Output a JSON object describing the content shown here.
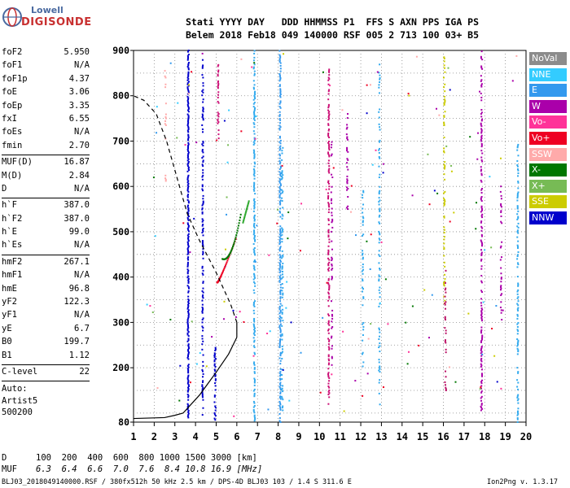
{
  "logo": {
    "line1": "Lowell",
    "line2": "DIGISONDE"
  },
  "header": {
    "line1": "Stati YYYY DAY   DDD HHMMSS P1  FFS S AXN PPS IGA PS",
    "line2": "Belem 2018 Feb18 049 140000 RSF 005 2 713 100 03+ B5"
  },
  "params": [
    {
      "k": "foF2",
      "v": "5.950"
    },
    {
      "k": "foF1",
      "v": "N/A"
    },
    {
      "k": "foF1p",
      "v": "4.37"
    },
    {
      "k": "foE",
      "v": "3.06"
    },
    {
      "k": "foEp",
      "v": "3.35"
    },
    {
      "k": "fxI",
      "v": "6.55"
    },
    {
      "k": "foEs",
      "v": "N/A"
    },
    {
      "k": "fmin",
      "v": "2.70"
    },
    {
      "k": "MUF(D)",
      "v": "16.87"
    },
    {
      "k": "M(D)",
      "v": "2.84"
    },
    {
      "k": "D",
      "v": "N/A"
    },
    {
      "k": "h`F",
      "v": "387.0"
    },
    {
      "k": "h`F2",
      "v": "387.0"
    },
    {
      "k": "h`E",
      "v": "99.0"
    },
    {
      "k": "h`Es",
      "v": "N/A"
    },
    {
      "k": "hmF2",
      "v": "267.1"
    },
    {
      "k": "hmF1",
      "v": "N/A"
    },
    {
      "k": "hmE",
      "v": "96.8"
    },
    {
      "k": "yF2",
      "v": "122.3"
    },
    {
      "k": "yF1",
      "v": "N/A"
    },
    {
      "k": "yE",
      "v": "6.7"
    },
    {
      "k": "B0",
      "v": "199.7"
    },
    {
      "k": "B1",
      "v": "1.12"
    },
    {
      "k": "C-level",
      "v": "22"
    }
  ],
  "auto": {
    "l1": "Auto:",
    "l2": "Artist5",
    "l3": "500200"
  },
  "legend": [
    {
      "label": "NoVal",
      "bg": "#8c8c8c",
      "fg": "#ffffff"
    },
    {
      "label": "NNE",
      "bg": "#33ccff",
      "fg": "#ffffff"
    },
    {
      "label": "E",
      "bg": "#3399ee",
      "fg": "#ffffff"
    },
    {
      "label": "W",
      "bg": "#aa00aa",
      "fg": "#ffffff"
    },
    {
      "label": "Vo-",
      "bg": "#ff3399",
      "fg": "#ffffff"
    },
    {
      "label": "Vo+",
      "bg": "#ee0022",
      "fg": "#ffffff"
    },
    {
      "label": "SSW",
      "bg": "#ffaaaa",
      "fg": "#ffffff"
    },
    {
      "label": "X-",
      "bg": "#007700",
      "fg": "#ffffff"
    },
    {
      "label": "X+",
      "bg": "#77bb55",
      "fg": "#ffffff"
    },
    {
      "label": "SSE",
      "bg": "#cccc00",
      "fg": "#ffffff"
    },
    {
      "label": "NNW",
      "bg": "#0000cc",
      "fg": "#ffffff"
    }
  ],
  "chart_data": {
    "type": "scatter",
    "title": "",
    "xlabel": "",
    "ylabel": "",
    "xlim": [
      1,
      20
    ],
    "ylim": [
      80,
      900
    ],
    "x_ticks": [
      "1",
      "2",
      "3",
      "4",
      "5",
      "6",
      "7",
      "8",
      "9",
      "10",
      "11",
      "12",
      "13",
      "14",
      "15",
      "16",
      "17",
      "18",
      "19",
      "20"
    ],
    "y_ticks": [
      "80",
      "200",
      "300",
      "400",
      "500",
      "600",
      "700",
      "800",
      "900"
    ],
    "grid": true,
    "trace_x_mode_color": "#007700",
    "trace_o_mode_color": "#ee0022",
    "profile_line": "solid",
    "profile_extrapolation": "dashed",
    "notes": "Ionogram echo traces plus an electron density profile; vertical dotted lines are Doppler echo columns colored by legend directions"
  },
  "bottom": {
    "d_label": "D",
    "d_values": "100  200  400  600  800 1000 1500 3000 [km]",
    "muf_label": "MUF",
    "muf_values": "6.3  6.4  6.6  7.0  7.6  8.4 10.8 16.9 [MHz]",
    "footer_left": "BLJ03_2018049140000.RSF / 380fx512h 50 kHz 2.5 km / DPS-4D BLJ03 103 / 1.4 S 311.6 E",
    "footer_right": "Ion2Png v. 1.3.17"
  }
}
